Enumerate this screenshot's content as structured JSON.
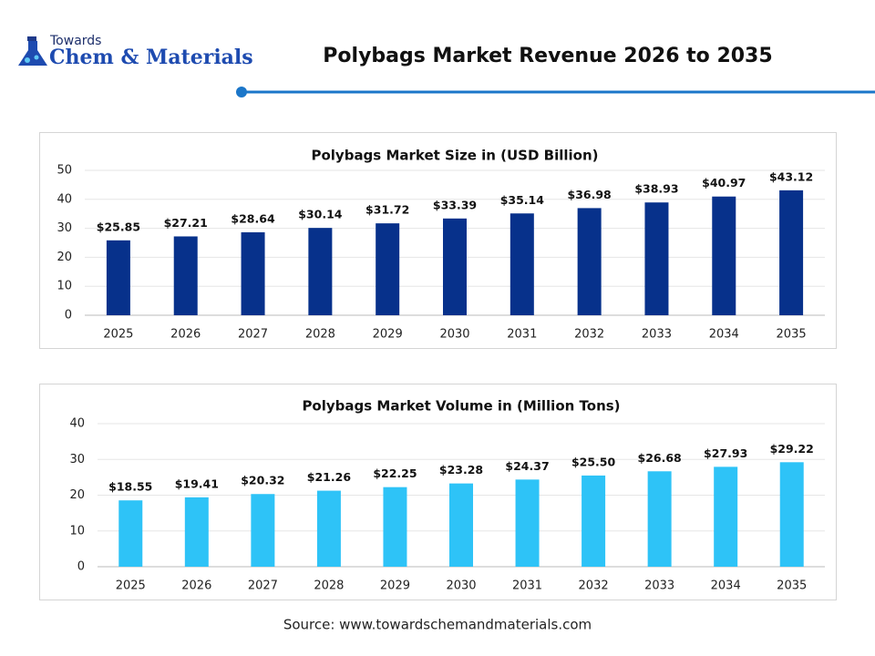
{
  "header": {
    "logo_small": "Towards",
    "logo": "Chem & Materials",
    "title": "Polybags Market Revenue 2026 to 2035"
  },
  "source": "Source: www.towardschemandmaterials.com",
  "chart_data": [
    {
      "type": "bar",
      "title": "Polybags Market Size in (USD Billion)",
      "categories": [
        "2025",
        "2026",
        "2027",
        "2028",
        "2029",
        "2030",
        "2031",
        "2032",
        "2033",
        "2034",
        "2035"
      ],
      "values": [
        25.85,
        27.21,
        28.64,
        30.14,
        31.72,
        33.39,
        35.14,
        36.98,
        38.93,
        40.97,
        43.12
      ],
      "value_labels": [
        "$25.85",
        "$27.21",
        "$28.64",
        "$30.14",
        "$31.72",
        "$33.39",
        "$35.14",
        "$36.98",
        "$38.93",
        "$40.97",
        "$43.12"
      ],
      "color": "#07318b",
      "ylim": [
        0,
        50
      ],
      "yticks": [
        0,
        10,
        20,
        30,
        40,
        50
      ],
      "grid": true
    },
    {
      "type": "bar",
      "title": "Polybags Market Volume in (Million Tons)",
      "categories": [
        "2025",
        "2026",
        "2027",
        "2028",
        "2029",
        "2030",
        "2031",
        "2032",
        "2033",
        "2034",
        "2035"
      ],
      "values": [
        18.55,
        19.41,
        20.32,
        21.26,
        22.25,
        23.28,
        24.37,
        25.5,
        26.68,
        27.93,
        29.22
      ],
      "value_labels": [
        "$18.55",
        "$19.41",
        "$20.32",
        "$21.26",
        "$22.25",
        "$23.28",
        "$24.37",
        "$25.50",
        "$26.68",
        "$27.93",
        "$29.22"
      ],
      "color": "#2ec3f7",
      "ylim": [
        0,
        40
      ],
      "yticks": [
        0,
        10,
        20,
        30,
        40
      ],
      "grid": true
    }
  ]
}
